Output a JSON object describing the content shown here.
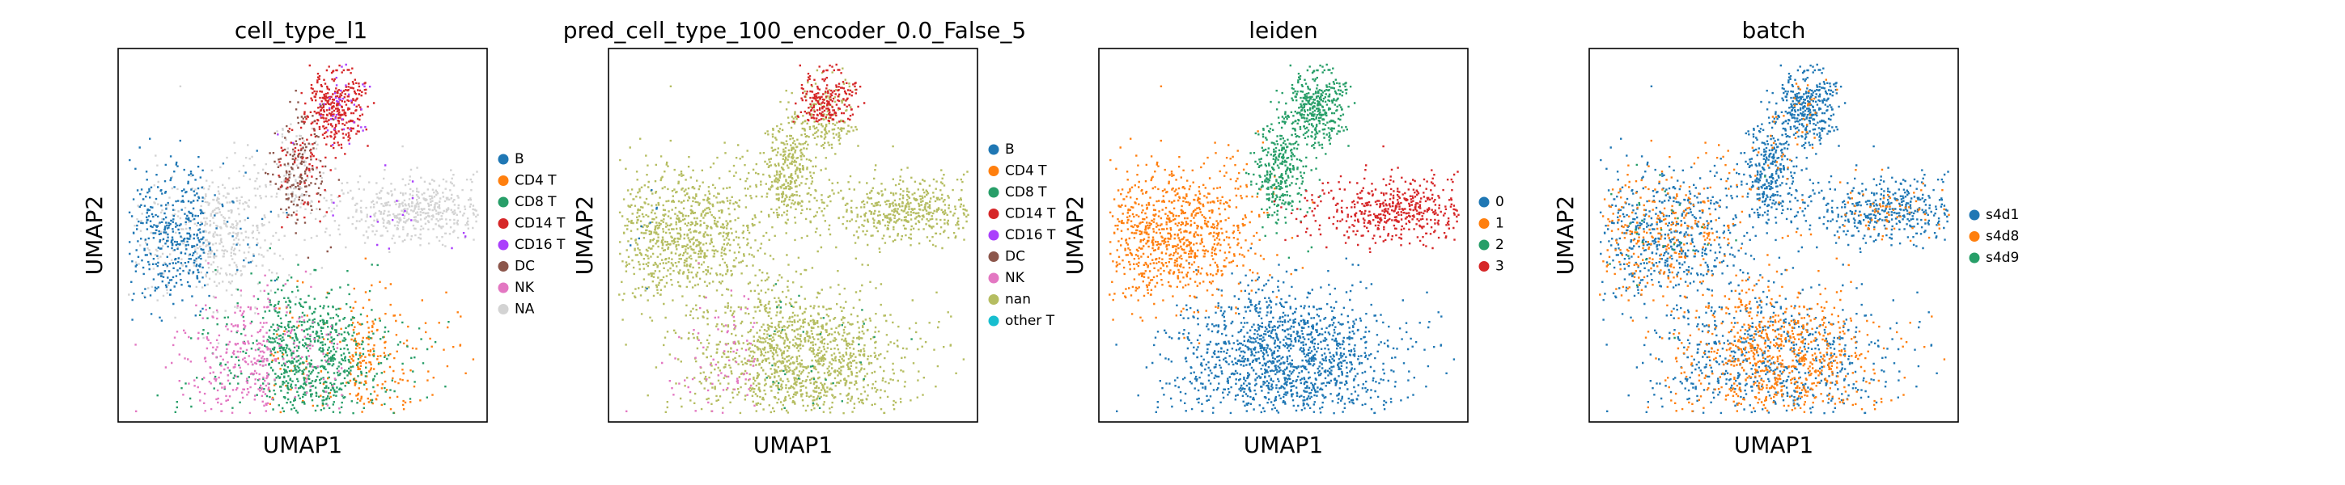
{
  "chart_data": [
    {
      "type": "scatter",
      "title": "cell_type_l1",
      "xlabel": "UMAP1",
      "ylabel": "UMAP2",
      "legend_placement": "right",
      "categories": [
        {
          "name": "B",
          "color": "#1f77b4"
        },
        {
          "name": "CD4 T",
          "color": "#ff7f0e"
        },
        {
          "name": "CD8 T",
          "color": "#279e68"
        },
        {
          "name": "CD14 T",
          "color": "#d62728"
        },
        {
          "name": "CD16 T",
          "color": "#aa40fc"
        },
        {
          "name": "DC",
          "color": "#8c564b"
        },
        {
          "name": "NK",
          "color": "#e377c2"
        },
        {
          "name": "NA",
          "color": "#d3d3d3"
        }
      ]
    },
    {
      "type": "scatter",
      "title": "pred_cell_type_100_encoder_0.0_False_5",
      "xlabel": "UMAP1",
      "ylabel": "UMAP2",
      "legend_placement": "right",
      "categories": [
        {
          "name": "B",
          "color": "#1f77b4"
        },
        {
          "name": "CD4 T",
          "color": "#ff7f0e"
        },
        {
          "name": "CD8 T",
          "color": "#279e68"
        },
        {
          "name": "CD14 T",
          "color": "#d62728"
        },
        {
          "name": "CD16 T",
          "color": "#aa40fc"
        },
        {
          "name": "DC",
          "color": "#8c564b"
        },
        {
          "name": "NK",
          "color": "#e377c2"
        },
        {
          "name": "nan",
          "color": "#b5bd61"
        },
        {
          "name": "other T",
          "color": "#17becf"
        }
      ]
    },
    {
      "type": "scatter",
      "title": "leiden",
      "xlabel": "UMAP1",
      "ylabel": "UMAP2",
      "legend_placement": "right",
      "categories": [
        {
          "name": "0",
          "color": "#1f77b4"
        },
        {
          "name": "1",
          "color": "#ff7f0e"
        },
        {
          "name": "2",
          "color": "#279e68"
        },
        {
          "name": "3",
          "color": "#d62728"
        }
      ]
    },
    {
      "type": "scatter",
      "title": "batch",
      "xlabel": "UMAP1",
      "ylabel": "UMAP2",
      "legend_placement": "right",
      "categories": [
        {
          "name": "s4d1",
          "color": "#1f77b4"
        },
        {
          "name": "s4d8",
          "color": "#ff7f0e"
        },
        {
          "name": "s4d9",
          "color": "#279e68"
        }
      ]
    }
  ]
}
